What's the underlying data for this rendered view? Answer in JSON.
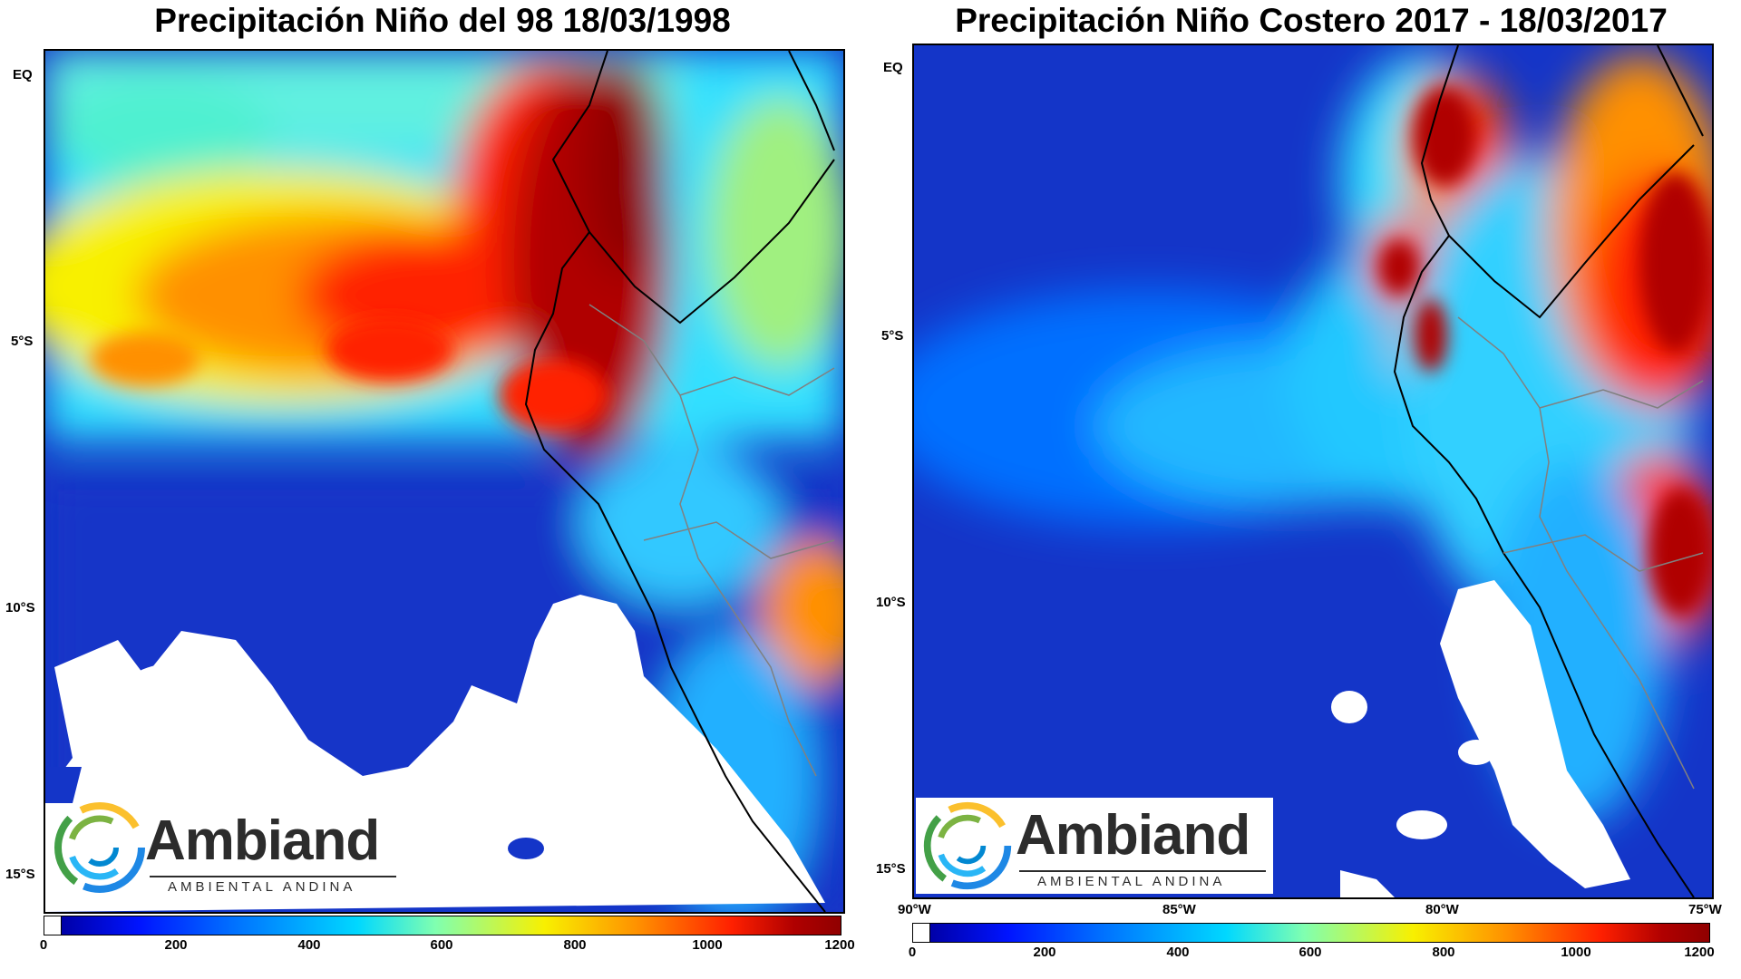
{
  "panels": [
    {
      "title": "Precipitación Niño del 98 18/03/1998",
      "lat_labels": [
        "EQ",
        "5°S",
        "10°S",
        "15°S"
      ],
      "lon_labels": [],
      "colorbar_ticks": [
        "0",
        "200",
        "400",
        "600",
        "800",
        "1000",
        "1200"
      ]
    },
    {
      "title": "Precipitación Niño Costero 2017 - 18/03/2017",
      "lat_labels": [
        "EQ",
        "5°S",
        "10°S",
        "15°S"
      ],
      "lon_labels": [
        "90°W",
        "85°W",
        "80°W",
        "75°W"
      ],
      "colorbar_ticks": [
        "0",
        "200",
        "400",
        "600",
        "800",
        "1000",
        "1200"
      ]
    }
  ],
  "logo": {
    "name": "Ambiand",
    "tagline": "AMBIENTAL ANDINA"
  },
  "colors": {
    "dark_blue": "#1435c8",
    "cyan": "#20d0ff",
    "yellow": "#f8f000",
    "red": "#ff2000",
    "dark_red": "#a00000"
  }
}
